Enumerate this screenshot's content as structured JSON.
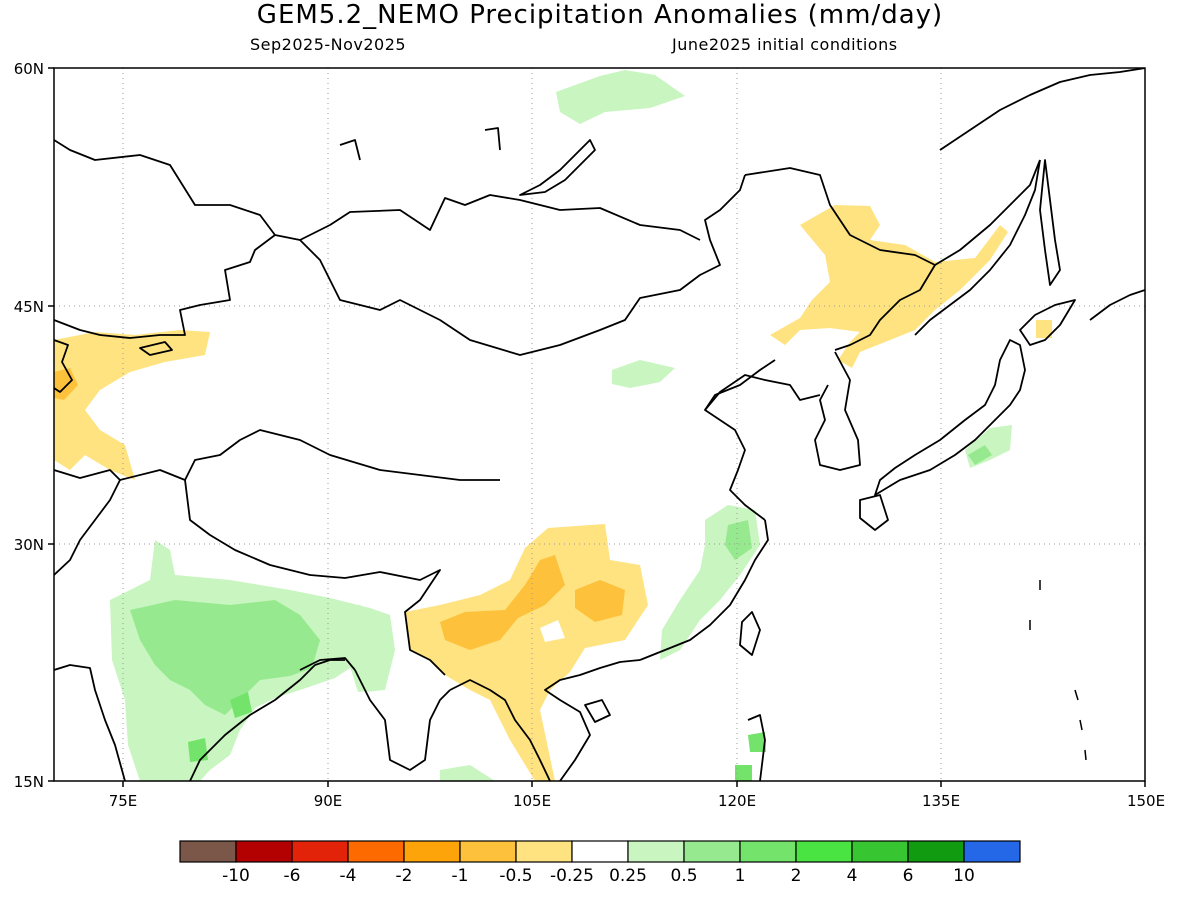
{
  "title": "GEM5.2_NEMO Precipitation Anomalies (mm/day)",
  "subtitle_left": "Sep2025-Nov2025",
  "subtitle_right": "June2025 initial conditions",
  "lat_labels": [
    "60N",
    "45N",
    "30N",
    "15N"
  ],
  "lon_labels": [
    "75E",
    "90E",
    "105E",
    "120E",
    "135E",
    "150E"
  ],
  "legend": {
    "labels": [
      "-10",
      "-6",
      "-4",
      "-2",
      "-1",
      "-0.5",
      "-0.25",
      "0.25",
      "0.5",
      "1",
      "2",
      "4",
      "6",
      "10"
    ],
    "colors": [
      "#7b574a",
      "#b30000",
      "#e3220a",
      "#fd6b00",
      "#fda40a",
      "#fdc13b",
      "#fee380",
      "#ffffff",
      "#c8f5c0",
      "#97e98f",
      "#74e36b",
      "#4ae442",
      "#38c532",
      "#119b11",
      "#2468e8"
    ]
  },
  "colors": {
    "positive_light": "#c8f5c0",
    "positive_mid": "#97e98f",
    "positive_strong": "#74e36b",
    "negative_light": "#fee380",
    "negative_mid": "#fdc13b"
  }
}
